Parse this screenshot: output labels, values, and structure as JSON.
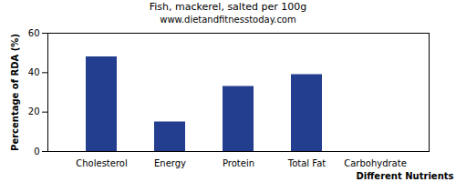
{
  "chart_data": {
    "type": "bar",
    "title": "Fish, mackerel, salted per 100g",
    "subtitle": "www.dietandfitnesstoday.com",
    "x_label": "Different Nutrients",
    "y_label": "Percentage of RDA (%)",
    "categories": [
      "Cholesterol",
      "Energy",
      "Protein",
      "Total Fat",
      "Carbohydrate"
    ],
    "values": [
      48,
      15,
      33,
      39,
      0
    ],
    "color": "#233d8f",
    "ylim": [
      0,
      60
    ],
    "yticks": [
      0,
      20,
      40,
      60
    ],
    "grid": false
  }
}
